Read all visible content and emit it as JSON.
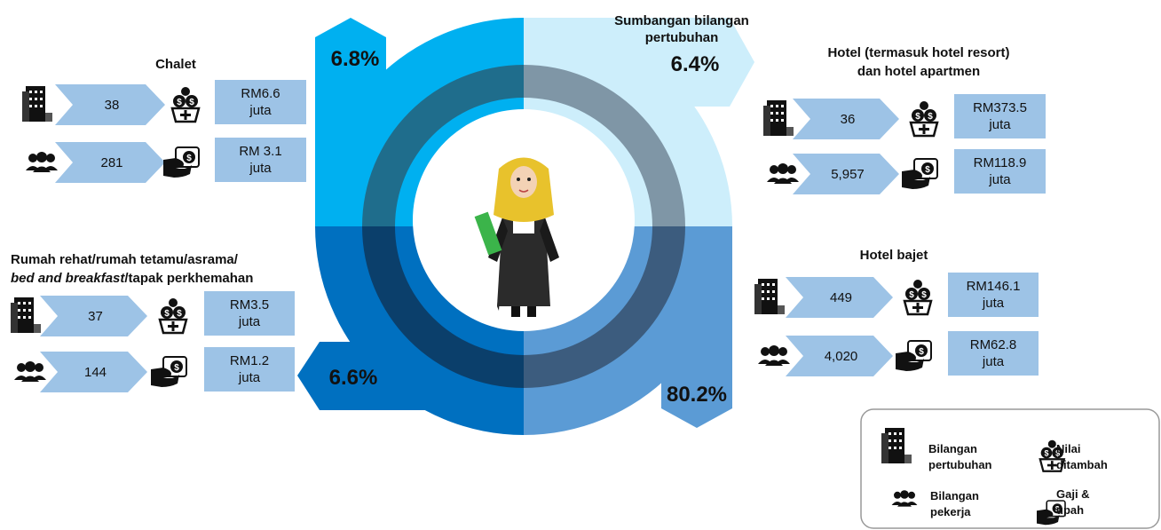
{
  "center_title_lines": [
    "Sumbangan bilangan",
    "pertubuhan"
  ],
  "segments": [
    {
      "position": "top-left",
      "percent": "6.8%"
    },
    {
      "position": "top-right",
      "percent": "6.4%"
    },
    {
      "position": "bottom-right",
      "percent": "80.2%"
    },
    {
      "position": "bottom-left",
      "percent": "6.6%"
    }
  ],
  "groups": [
    {
      "title_lines": [
        "Chalet"
      ],
      "establishments": "38",
      "value_added": [
        "RM6.6",
        "juta"
      ],
      "workers": "281",
      "wages": [
        "RM 3.1",
        "juta"
      ]
    },
    {
      "title_lines": [
        "Hotel (termasuk hotel resort)",
        "dan hotel apartmen"
      ],
      "establishments": "36",
      "value_added": [
        "RM373.5",
        "juta"
      ],
      "workers": "5,957",
      "wages": [
        "RM118.9",
        "juta"
      ]
    },
    {
      "title_parts": [
        "Rumah rehat/rumah tetamu/asrama/",
        "bed and breakfast",
        "/tapak  perkhemahan"
      ],
      "establishments": "37",
      "value_added": [
        "RM3.5",
        "juta"
      ],
      "workers": "144",
      "wages": [
        "RM1.2",
        "juta"
      ]
    },
    {
      "title_lines": [
        "Hotel bajet"
      ],
      "establishments": "449",
      "value_added": [
        "RM146.1",
        "juta"
      ],
      "workers": "4,020",
      "wages": [
        "RM62.8",
        "juta"
      ]
    }
  ],
  "legend": [
    {
      "lines": [
        "Bilangan",
        "pertubuhan"
      ]
    },
    {
      "lines": [
        "Nilai",
        "ditambah"
      ]
    },
    {
      "lines": [
        "Bilangan",
        "pekerja"
      ]
    },
    {
      "lines": [
        "Gaji &",
        "upah"
      ]
    }
  ]
}
